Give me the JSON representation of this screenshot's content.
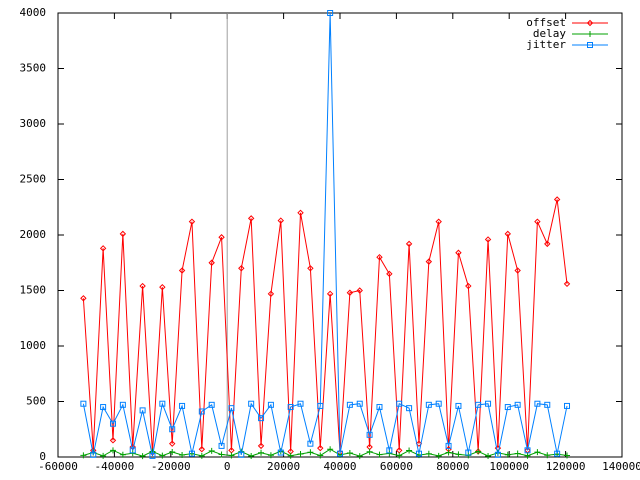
{
  "chart_data": {
    "type": "line",
    "x": [
      -51000,
      -47500,
      -44000,
      -40500,
      -37000,
      -33500,
      -30000,
      -26500,
      -23000,
      -19500,
      -16000,
      -12500,
      -9000,
      -5500,
      -2000,
      1500,
      5000,
      8500,
      12000,
      15500,
      19000,
      22500,
      26000,
      29500,
      33000,
      36500,
      40000,
      43500,
      47000,
      50500,
      54000,
      57500,
      61000,
      64500,
      68000,
      71500,
      75000,
      78500,
      82000,
      85500,
      89000,
      92500,
      96000,
      99500,
      103000,
      106500,
      110000,
      113500,
      117000,
      120500
    ],
    "series": [
      {
        "name": "offset",
        "color": "#ff0000",
        "marker": "diamond",
        "values": [
          1430,
          60,
          1880,
          150,
          2010,
          90,
          1540,
          40,
          1530,
          120,
          1680,
          2120,
          70,
          1750,
          1980,
          60,
          1700,
          2150,
          100,
          1470,
          2130,
          50,
          2200,
          1700,
          80,
          1470,
          40,
          1480,
          1500,
          90,
          1800,
          1650,
          60,
          1920,
          120,
          1760,
          2120,
          70,
          1840,
          1540,
          50,
          1960,
          80,
          2010,
          1680,
          60,
          2120,
          1920,
          2320,
          1560
        ]
      },
      {
        "name": "delay",
        "color": "#00a000",
        "marker": "plus",
        "values": [
          15,
          40,
          10,
          60,
          20,
          35,
          8,
          50,
          12,
          45,
          18,
          30,
          10,
          55,
          22,
          14,
          48,
          9,
          38,
          16,
          52,
          11,
          27,
          43,
          13,
          70,
          19,
          36,
          8,
          47,
          21,
          33,
          12,
          58,
          17,
          29,
          10,
          41,
          24,
          15,
          50,
          9,
          37,
          20,
          31,
          11,
          44,
          16,
          26,
          13
        ]
      },
      {
        "name": "jitter",
        "color": "#0080ff",
        "marker": "square",
        "values": [
          480,
          20,
          450,
          300,
          470,
          60,
          420,
          10,
          480,
          250,
          460,
          30,
          410,
          470,
          100,
          440,
          20,
          480,
          350,
          470,
          40,
          450,
          480,
          120,
          460,
          4000,
          30,
          470,
          480,
          200,
          450,
          60,
          480,
          440,
          30,
          470,
          480,
          100,
          460,
          40,
          470,
          480,
          20,
          450,
          470,
          60,
          480,
          470,
          30,
          460
        ]
      }
    ],
    "xlim": [
      -60000,
      140000
    ],
    "xticks": [
      -60000,
      -40000,
      -20000,
      0,
      20000,
      40000,
      60000,
      80000,
      100000,
      120000,
      140000
    ],
    "ylim": [
      0,
      4000
    ],
    "yticks": [
      0,
      500,
      1000,
      1500,
      2000,
      2500,
      3000,
      3500,
      4000
    ],
    "zeroaxis": true,
    "legend": "top-right"
  }
}
